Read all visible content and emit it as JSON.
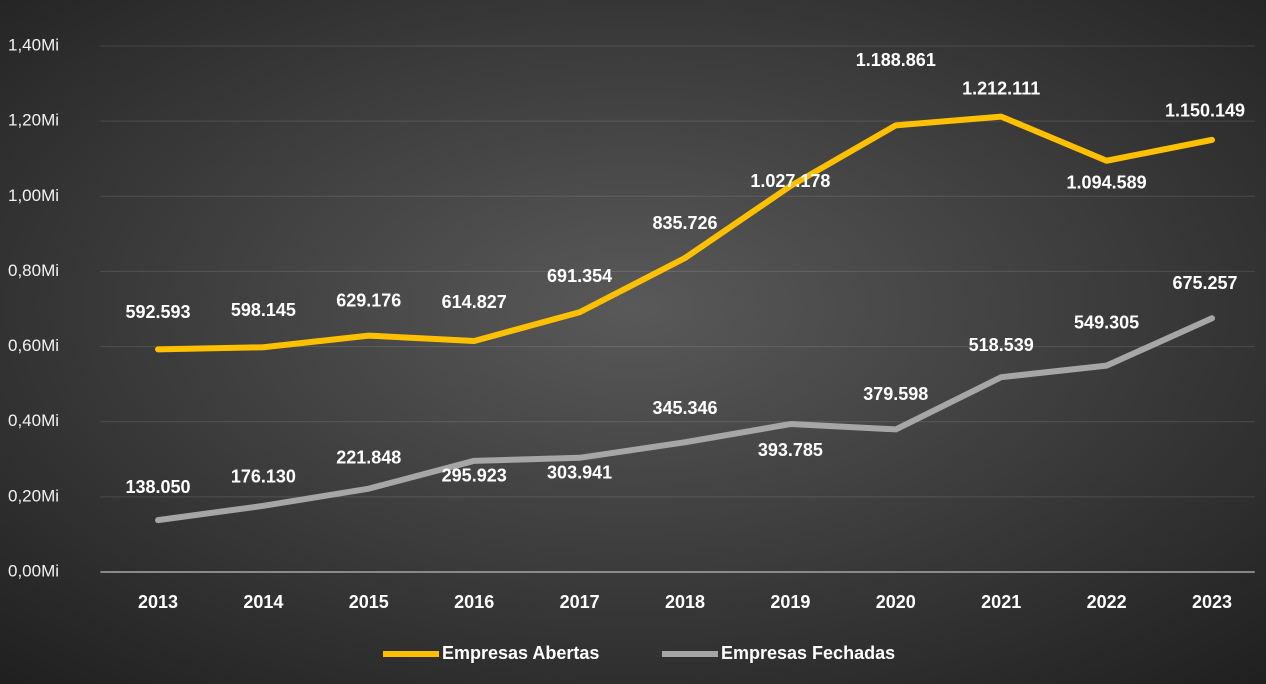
{
  "chart_data": {
    "type": "line",
    "categories": [
      "2013",
      "2014",
      "2015",
      "2016",
      "2017",
      "2018",
      "2019",
      "2020",
      "2021",
      "2022",
      "2023"
    ],
    "series": [
      {
        "name": "Empresas Abertas",
        "color": "#FFC000",
        "values": [
          592593,
          598145,
          629176,
          614827,
          691354,
          835726,
          1027178,
          1188861,
          1212111,
          1094589,
          1150149
        ],
        "value_labels": [
          "592.593",
          "598.145",
          "629.176",
          "614.827",
          "691.354",
          "835.726",
          "1.027.178",
          "1.188.861",
          "1.212.111",
          "1.094.589",
          "1.150.149"
        ]
      },
      {
        "name": "Empresas Fechadas",
        "color": "#A6A6A6",
        "values": [
          138050,
          176130,
          221848,
          295923,
          303941,
          345346,
          393785,
          379598,
          518539,
          549305,
          675257
        ],
        "value_labels": [
          "138.050",
          "176.130",
          "221.848",
          "295.923",
          "303.941",
          "345.346",
          "393.785",
          "379.598",
          "518.539",
          "549.305",
          "675.257"
        ]
      }
    ],
    "ylim": [
      0,
      1400000
    ],
    "yticks": [
      {
        "value": 0,
        "label": "0,00Mi"
      },
      {
        "value": 200000,
        "label": "0,20Mi"
      },
      {
        "value": 400000,
        "label": "0,40Mi"
      },
      {
        "value": 600000,
        "label": "0,60Mi"
      },
      {
        "value": 800000,
        "label": "0,80Mi"
      },
      {
        "value": 1000000,
        "label": "1,00Mi"
      },
      {
        "value": 1200000,
        "label": "1,20Mi"
      },
      {
        "value": 1400000,
        "label": "1,40Mi"
      }
    ],
    "grid": true,
    "legend": "bottom"
  }
}
